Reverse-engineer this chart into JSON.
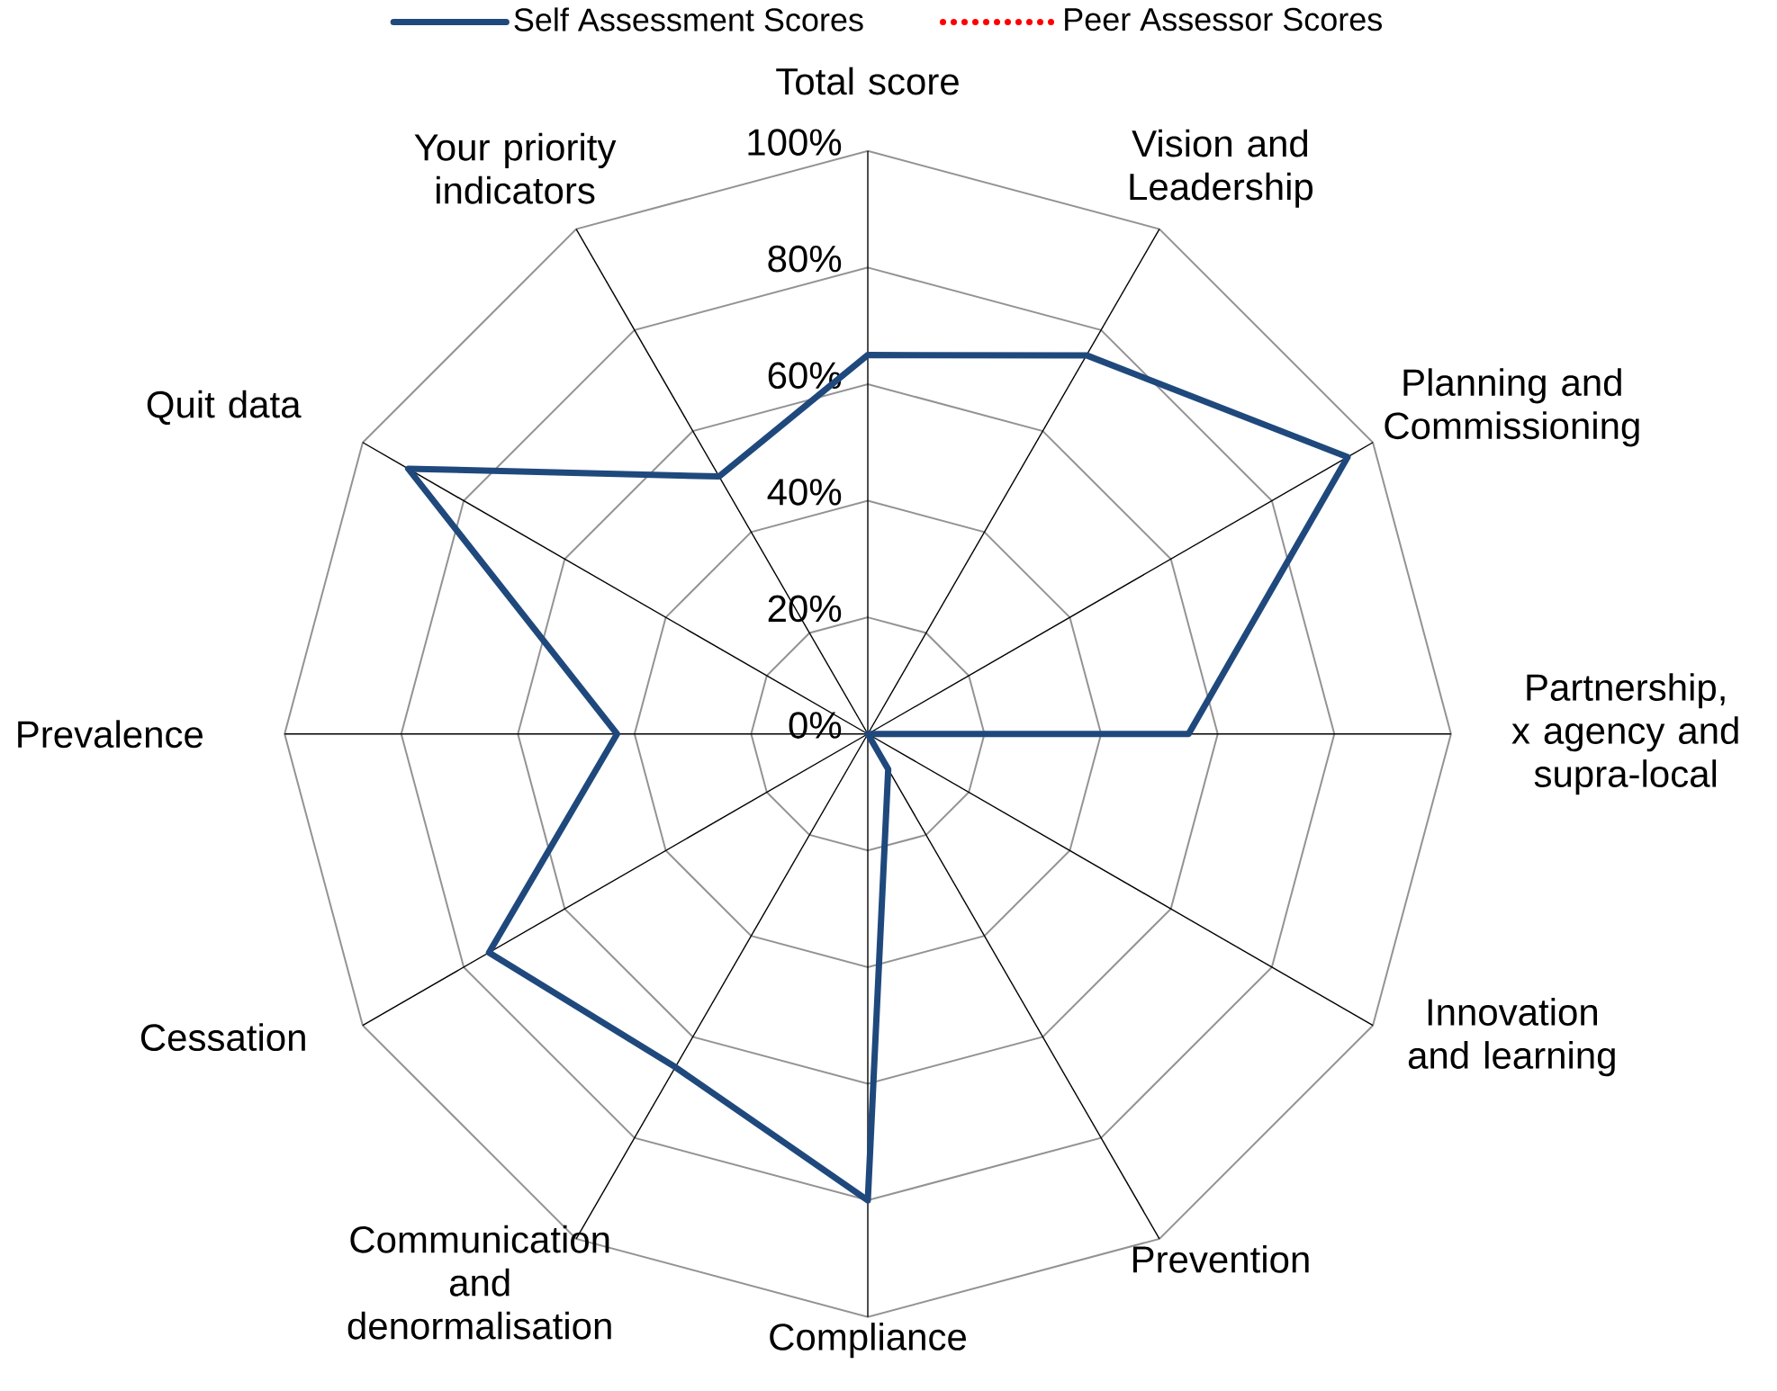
{
  "chart_data": {
    "type": "radar",
    "categories": [
      "Total score",
      "Vision and Leadership",
      "Planning and Commissioning",
      "Partnership, x agency and supra-local",
      "Innovation and learning",
      "Prevention",
      "Compliance",
      "Communication and denormalisation",
      "Cessation",
      "Prevalence",
      "Quit data",
      "Your priority indicators"
    ],
    "series": [
      {
        "name": "Self Assessment Scores",
        "color": "#1f497d",
        "line_style": "solid",
        "values": [
          65,
          75,
          95,
          55,
          0,
          7,
          80,
          66,
          75,
          43,
          91,
          51
        ]
      },
      {
        "name": "Peer Assessor Scores",
        "color": "#ff0000",
        "line_style": "dotted",
        "values": [
          null,
          null,
          null,
          null,
          null,
          null,
          null,
          null,
          null,
          null,
          null,
          null
        ]
      }
    ],
    "ylim": [
      0,
      100
    ],
    "yticks": [
      {
        "value": 0,
        "label": "0%"
      },
      {
        "value": 20,
        "label": "20%"
      },
      {
        "value": 40,
        "label": "40%"
      },
      {
        "value": 60,
        "label": "60%"
      },
      {
        "value": 80,
        "label": "80%"
      },
      {
        "value": 100,
        "label": "100%"
      }
    ],
    "grid": true,
    "legend": "top",
    "marker": "none"
  }
}
